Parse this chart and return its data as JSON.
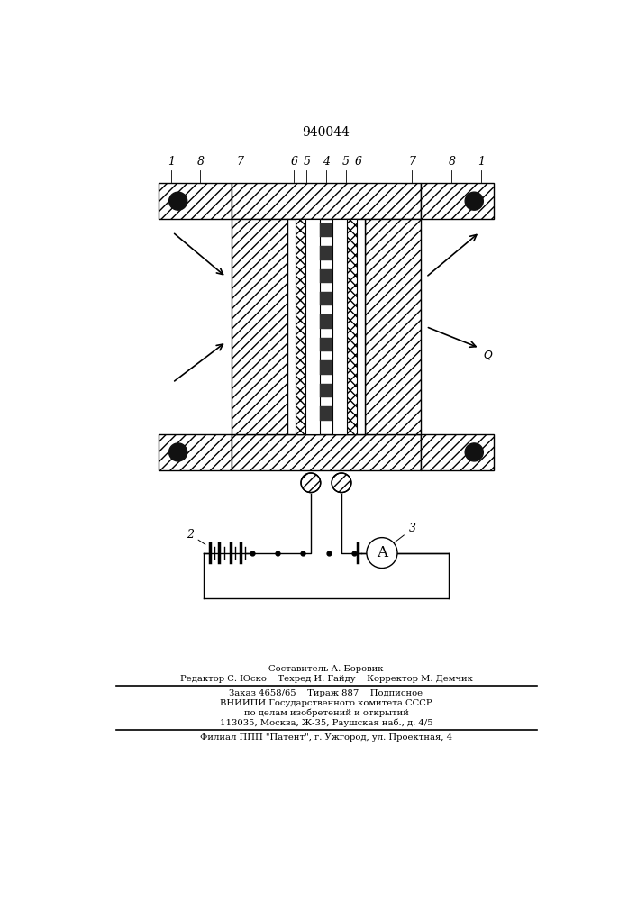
{
  "patent_number": "940044",
  "background_color": "#ffffff",
  "line_color": "#000000",
  "footer_lines": [
    "Составитель А. Боровик",
    "Редактор С. Юско    Техред И. Гайду    Корректор М. Демчик",
    "Заказ 4658/65    Тираж 887    Подписное",
    "ВНИИПИ Государственного комитета СССР",
    "по делам изобретений и открытий",
    "113035, Москва, Ж-35, Раушская наб., д. 4/5",
    "Филиал ППП \"Патент\", г. Ужгород, ул. Проектная, 4"
  ]
}
